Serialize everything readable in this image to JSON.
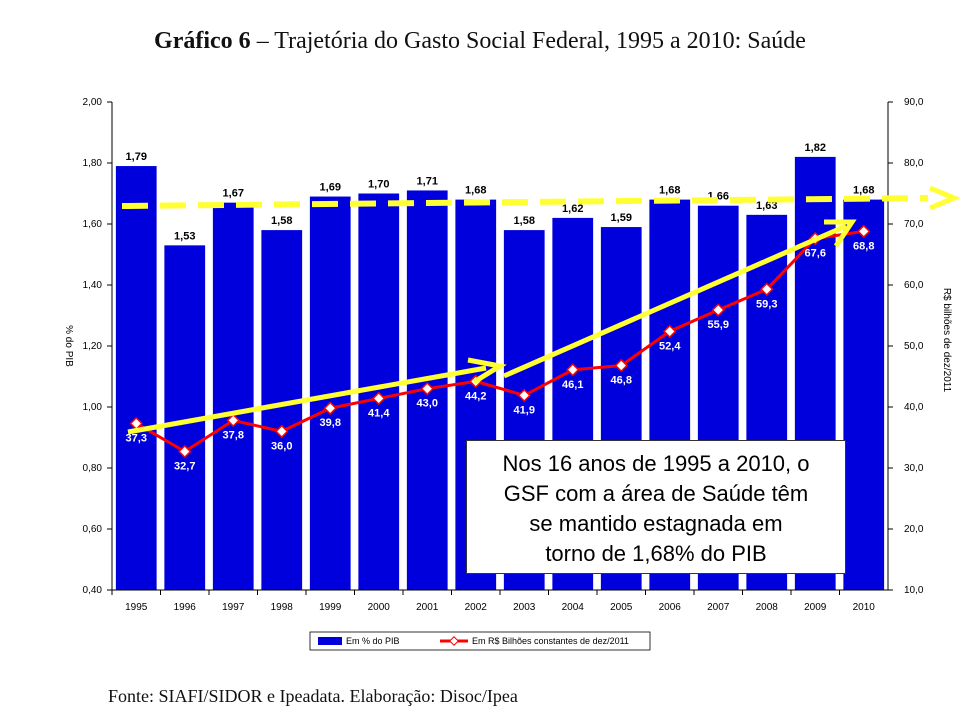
{
  "title": {
    "bold": "Gráfico 6",
    "rest": " – Trajetória do Gasto Social Federal, 1995 a 2010: Saúde"
  },
  "source": "Fonte: SIAFI/SIDOR e Ipeadata. Elaboração: Disoc/Ipea",
  "callout": {
    "lines": [
      "Nos 16 anos de 1995 a 2010, o",
      "GSF com a área de Saúde têm",
      "se mantido estagnada em",
      "torno de 1,68% do PIB"
    ]
  },
  "colors": {
    "bar": "#0000dd",
    "line": "#ff0000",
    "arrow": "#ffff33",
    "dashed": "#ffff33"
  },
  "chart_data": {
    "type": "bar",
    "categories": [
      "1995",
      "1996",
      "1997",
      "1998",
      "1999",
      "2000",
      "2001",
      "2002",
      "2003",
      "2004",
      "2005",
      "2006",
      "2007",
      "2008",
      "2009",
      "2010"
    ],
    "series": [
      {
        "name": "Em % do PIB",
        "axis": "left",
        "type": "bar",
        "values": [
          1.79,
          1.53,
          1.67,
          1.58,
          1.69,
          1.7,
          1.71,
          1.68,
          1.58,
          1.62,
          1.59,
          1.68,
          1.66,
          1.63,
          1.82,
          1.68
        ],
        "labels": [
          "1,79",
          "1,53",
          "1,67",
          "1,58",
          "1,69",
          "1,70",
          "1,71",
          "1,68",
          "1,58",
          "1,62",
          "1,59",
          "1,68",
          "1,66",
          "1,63",
          "1,82",
          "1,68"
        ]
      },
      {
        "name": "Em R$ Bilhões constantes de dez/2011",
        "axis": "right",
        "type": "line",
        "values": [
          37.3,
          32.7,
          37.8,
          36.0,
          39.8,
          41.4,
          43.0,
          44.2,
          41.9,
          46.1,
          46.8,
          52.4,
          55.9,
          59.3,
          67.6,
          68.8
        ],
        "labels": [
          "37,3",
          "32,7",
          "37,8",
          "36,0",
          "39,8",
          "41,4",
          "43,0",
          "44,2",
          "41,9",
          "46,1",
          "46,8",
          "52,4",
          "55,9",
          "59,3",
          "67,6",
          "68,8"
        ]
      }
    ],
    "yleft": {
      "label": "% do PIB",
      "ylim": [
        0.4,
        2.0
      ],
      "ticks": [
        "0,40",
        "0,60",
        "0,80",
        "1,00",
        "1,20",
        "1,40",
        "1,60",
        "1,80",
        "2,00"
      ]
    },
    "yright": {
      "label": "R$ bilhões de dez/2011",
      "ylim": [
        10.0,
        90.0
      ],
      "ticks": [
        "10,0",
        "20,0",
        "30,0",
        "40,0",
        "50,0",
        "60,0",
        "70,0",
        "80,0",
        "90,0"
      ]
    },
    "legend": {
      "position": "bottom"
    }
  }
}
